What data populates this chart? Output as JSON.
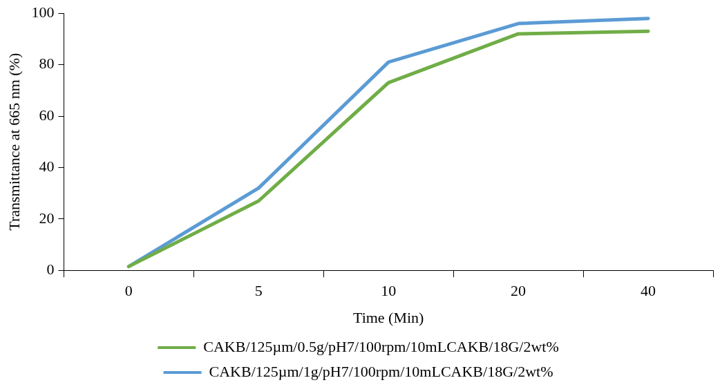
{
  "chart_data": {
    "type": "line",
    "xlabel": "Time (Min)",
    "ylabel": "Transmittance at 665 nm (%)",
    "categories": [
      "0",
      "5",
      "10",
      "20",
      "40"
    ],
    "ylim": [
      0,
      100
    ],
    "yticks": [
      0,
      20,
      40,
      60,
      80,
      100
    ],
    "grid": false,
    "legend": "bottom",
    "marker": "none",
    "line_style": "solid",
    "series": [
      {
        "name": "CAKB/125µm/0.5g/pH7/100rpm/10mLCAKB/18G/2wt%",
        "color": "#70ad47",
        "values": [
          1.5,
          27,
          73,
          92,
          93
        ]
      },
      {
        "name": "CAKB/125µm/1g/pH7/100rpm/10mLCAKB/18G/2wt%",
        "color": "#5b9bd5",
        "values": [
          1.5,
          32,
          81,
          96,
          98
        ]
      }
    ]
  }
}
